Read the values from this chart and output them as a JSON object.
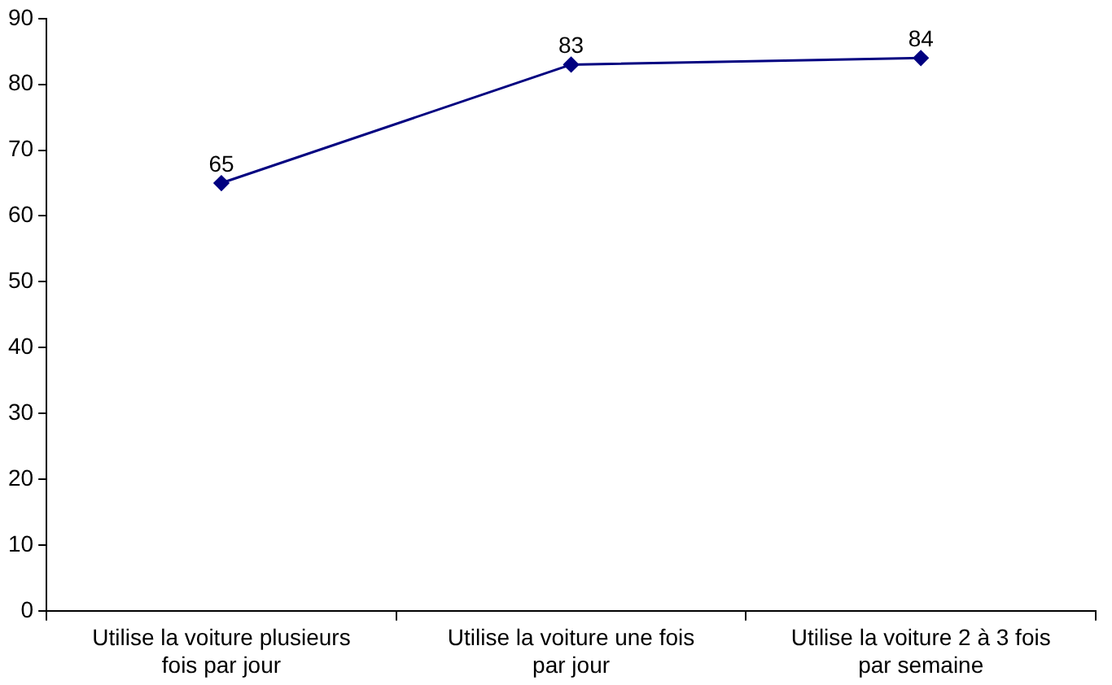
{
  "chart_data": {
    "type": "line",
    "categories": [
      "Utilise la voiture plusieurs fois par jour",
      "Utilise la voiture une fois par jour",
      "Utilise la voiture 2 à 3 fois par semaine"
    ],
    "series": [
      {
        "color": "#000080",
        "values": [
          65,
          83,
          84
        ]
      }
    ],
    "ylim": [
      0,
      90
    ],
    "yticks": [
      0,
      10,
      20,
      30,
      40,
      50,
      60,
      70,
      80,
      90
    ],
    "grid": false,
    "legend": false,
    "marker": "diamond",
    "line_style": "solid",
    "data_labels": true
  }
}
